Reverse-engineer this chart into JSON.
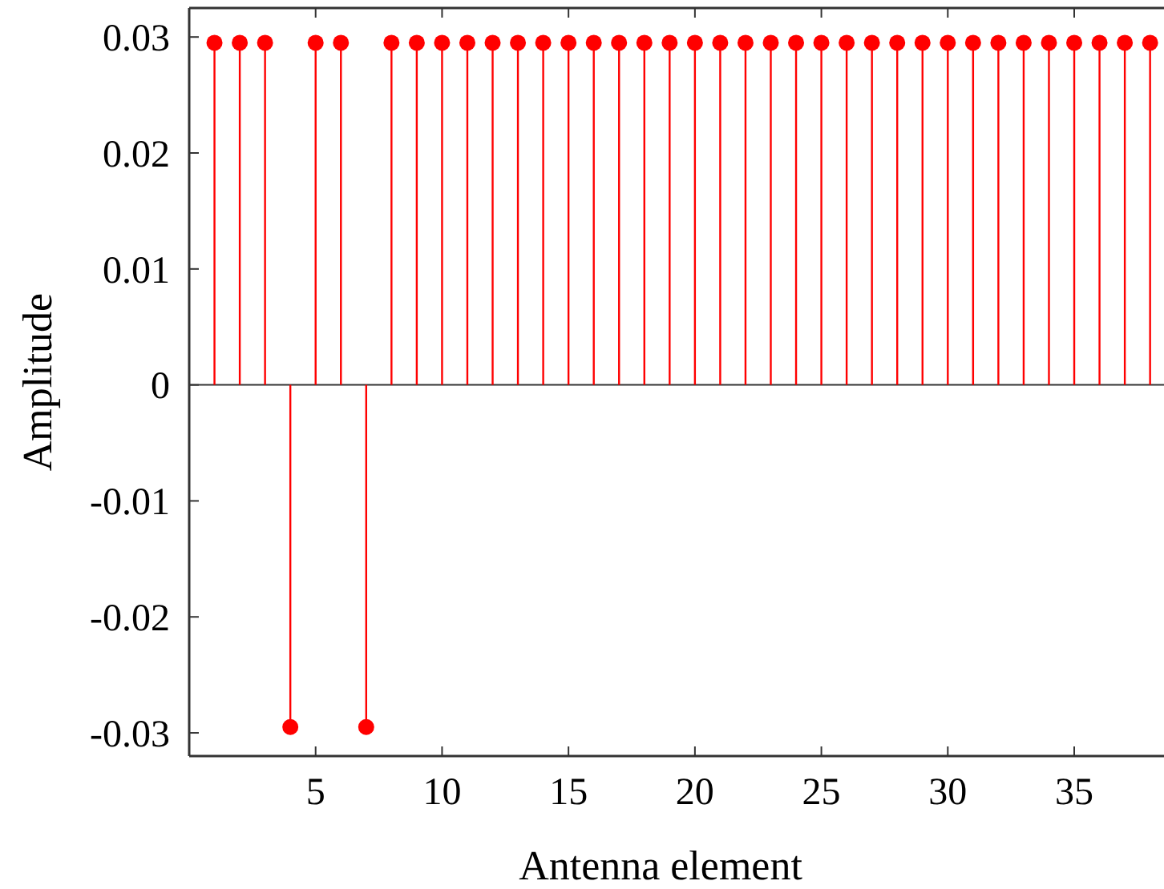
{
  "chart_data": {
    "type": "lollipop",
    "xlabel": "Antenna element",
    "ylabel": "Amplitude",
    "x": [
      1,
      2,
      3,
      4,
      5,
      6,
      7,
      8,
      9,
      10,
      11,
      12,
      13,
      14,
      15,
      16,
      17,
      18,
      19,
      20,
      21,
      22,
      23,
      24,
      25,
      26,
      27,
      28,
      29,
      30,
      31,
      32,
      33,
      34,
      35,
      36,
      37,
      38
    ],
    "values": [
      0.0295,
      0.0295,
      0.0295,
      -0.0295,
      0.0295,
      0.0295,
      -0.0295,
      0.0295,
      0.0295,
      0.0295,
      0.0295,
      0.0295,
      0.0295,
      0.0295,
      0.0295,
      0.0295,
      0.0295,
      0.0295,
      0.0295,
      0.0295,
      0.0295,
      0.0295,
      0.0295,
      0.0295,
      0.0295,
      0.0295,
      0.0295,
      0.0295,
      0.0295,
      0.0295,
      0.0295,
      0.0295,
      0.0295,
      0.0295,
      0.0295,
      0.0295,
      0.0295,
      0.0295
    ],
    "color": "#ff0000",
    "marker": "circle",
    "xlim": [
      0,
      38.55
    ],
    "xticks": [
      5,
      10,
      15,
      20,
      25,
      30,
      35
    ],
    "ylim": [
      -0.032,
      0.0325
    ],
    "yticks": [
      -0.03,
      -0.02,
      -0.01,
      0,
      0.01,
      0.02,
      0.03
    ]
  }
}
